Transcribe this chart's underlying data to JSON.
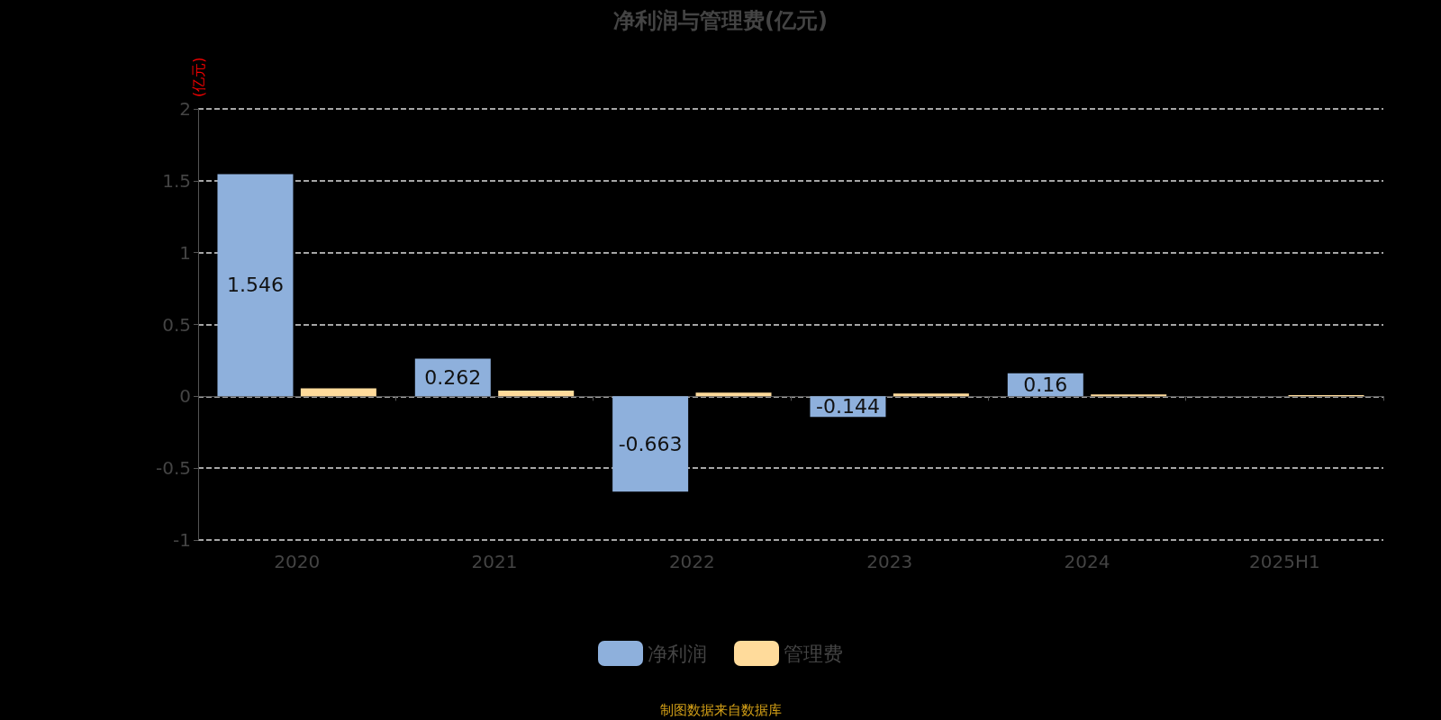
{
  "chart_data": {
    "type": "bar",
    "title": "净利润与管理费(亿元)",
    "ylabel": "(亿元)",
    "categories": [
      "2020",
      "2021",
      "2022",
      "2023",
      "2024",
      "2025H1"
    ],
    "series": [
      {
        "name": "净利润",
        "color": "#8eb0dc",
        "values": [
          1.546,
          0.262,
          -0.663,
          -0.144,
          0.16,
          null
        ],
        "value_labels": [
          "1.546",
          "0.262",
          "-0.663",
          "-0.144",
          "0.16",
          null
        ]
      },
      {
        "name": "管理费",
        "color": "#ffdb9b",
        "values": [
          0.055,
          0.04,
          0.025,
          0.02,
          0.013,
          0.008
        ]
      }
    ],
    "ylim": [
      -1,
      2
    ],
    "yticks": [
      -1,
      -0.5,
      0,
      0.5,
      1,
      1.5,
      2
    ],
    "grid": "y",
    "legend": "bottom",
    "annotations": [
      "制图数据来自数据库"
    ]
  }
}
